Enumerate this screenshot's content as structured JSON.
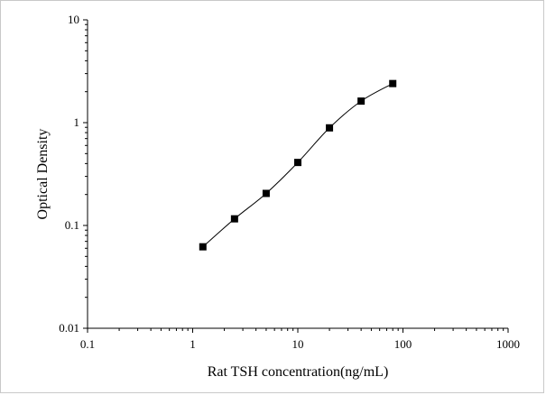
{
  "chart_data": {
    "type": "scatter",
    "title": "",
    "xlabel": "Rat TSH concentration(ng/mL)",
    "ylabel": "Optical Density",
    "x_scale": "log",
    "y_scale": "log",
    "xlim": [
      0.1,
      1000
    ],
    "ylim": [
      0.01,
      10
    ],
    "x_ticks": [
      0.1,
      1,
      10,
      100,
      1000
    ],
    "x_tick_labels": [
      "0.1",
      "1",
      "10",
      "100",
      "1000"
    ],
    "y_ticks": [
      0.01,
      0.1,
      1,
      10
    ],
    "y_tick_labels": [
      "0.01",
      "0.1",
      "1",
      "10"
    ],
    "grid": false,
    "series": [
      {
        "x": [
          1.25,
          2.5,
          5,
          10,
          20,
          40,
          80
        ],
        "y": [
          0.062,
          0.116,
          0.205,
          0.41,
          0.89,
          1.62,
          2.4
        ],
        "marker": "square",
        "line": "smooth",
        "color": "#000000"
      }
    ]
  }
}
